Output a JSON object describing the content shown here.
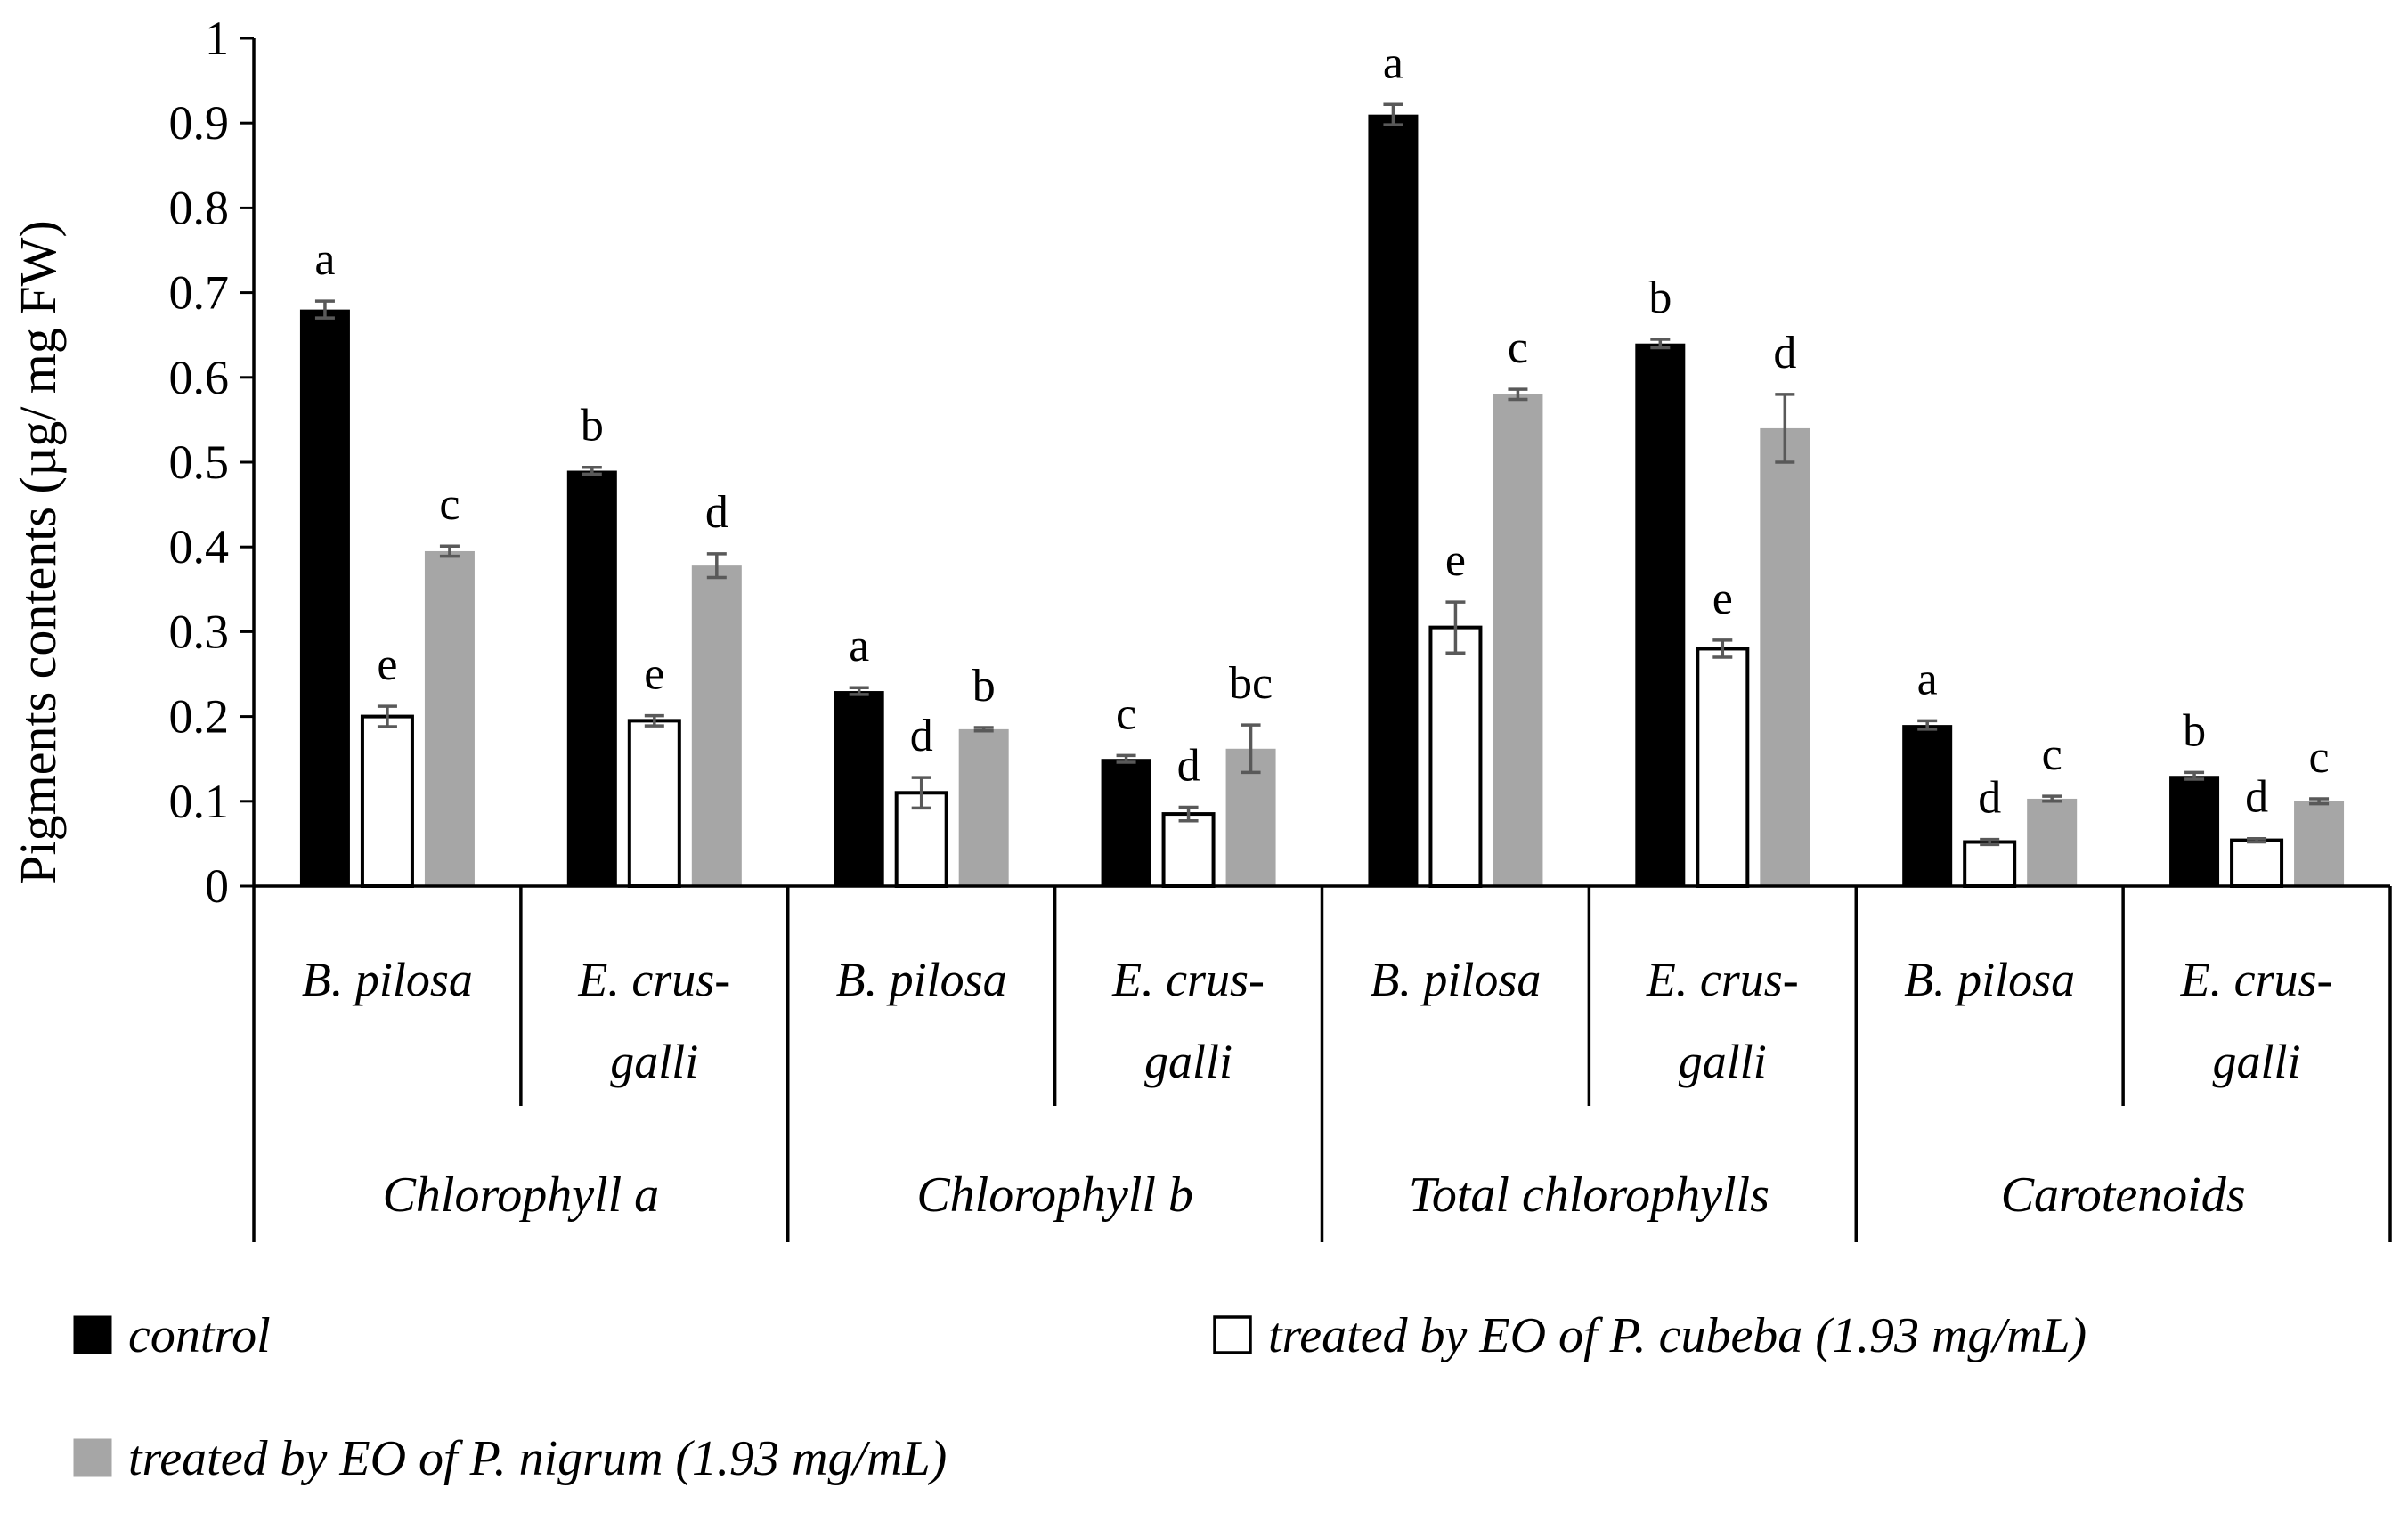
{
  "chart_data": {
    "type": "bar",
    "ylabel": "Pigments contents (µg/ mg FW)",
    "ylim": [
      0,
      1
    ],
    "yticks": [
      "0",
      "0.1",
      "0.2",
      "0.3",
      "0.4",
      "0.5",
      "0.6",
      "0.7",
      "0.8",
      "0.9",
      "1"
    ],
    "groups": [
      "Chlorophyll a",
      "Chlorophyll b",
      "Total chlorophylls",
      "Carotenoids"
    ],
    "categories": [
      {
        "group": "Chlorophyll a",
        "species": [
          "B. pilosa"
        ]
      },
      {
        "group": "Chlorophyll a",
        "species": [
          "E. crus-",
          "galli"
        ]
      },
      {
        "group": "Chlorophyll b",
        "species": [
          "B. pilosa"
        ]
      },
      {
        "group": "Chlorophyll b",
        "species": [
          "E. crus-",
          "galli"
        ]
      },
      {
        "group": "Total chlorophylls",
        "species": [
          "B. pilosa"
        ]
      },
      {
        "group": "Total chlorophylls",
        "species": [
          "E. crus-",
          "galli"
        ]
      },
      {
        "group": "Carotenoids",
        "species": [
          "B. pilosa"
        ]
      },
      {
        "group": "Carotenoids",
        "species": [
          "E. crus-",
          "galli"
        ]
      }
    ],
    "series": [
      {
        "name": "control",
        "color": "#000000",
        "values": [
          0.68,
          0.49,
          0.23,
          0.15,
          0.91,
          0.64,
          0.19,
          0.13
        ],
        "errors": [
          0.01,
          0.004,
          0.004,
          0.004,
          0.012,
          0.005,
          0.005,
          0.004
        ],
        "labels": [
          "a",
          "b",
          "a",
          "c",
          "a",
          "b",
          "a",
          "b"
        ]
      },
      {
        "name": "treated by EO of P. cubeba (1.93 mg/mL)",
        "color": "#ffffff",
        "values": [
          0.2,
          0.195,
          0.11,
          0.085,
          0.305,
          0.28,
          0.052,
          0.054
        ],
        "errors": [
          0.012,
          0.006,
          0.018,
          0.008,
          0.03,
          0.01,
          0.003,
          0.002
        ],
        "labels": [
          "e",
          "e",
          "d",
          "d",
          "e",
          "e",
          "d",
          "d"
        ]
      },
      {
        "name": "treated by EO of P. nigrum (1.93 mg/mL)",
        "color": "#a6a6a6",
        "values": [
          0.395,
          0.378,
          0.185,
          0.162,
          0.58,
          0.54,
          0.103,
          0.1
        ],
        "errors": [
          0.006,
          0.014,
          0.002,
          0.028,
          0.006,
          0.04,
          0.003,
          0.003
        ],
        "labels": [
          "c",
          "d",
          "b",
          "bc",
          "c",
          "d",
          "c",
          "c"
        ]
      }
    ]
  },
  "legend": {
    "control": "control",
    "cubeba": "treated by EO of P. cubeba (1.93 mg/mL)",
    "nigrum": "treated by EO of P. nigrum (1.93 mg/mL)"
  }
}
